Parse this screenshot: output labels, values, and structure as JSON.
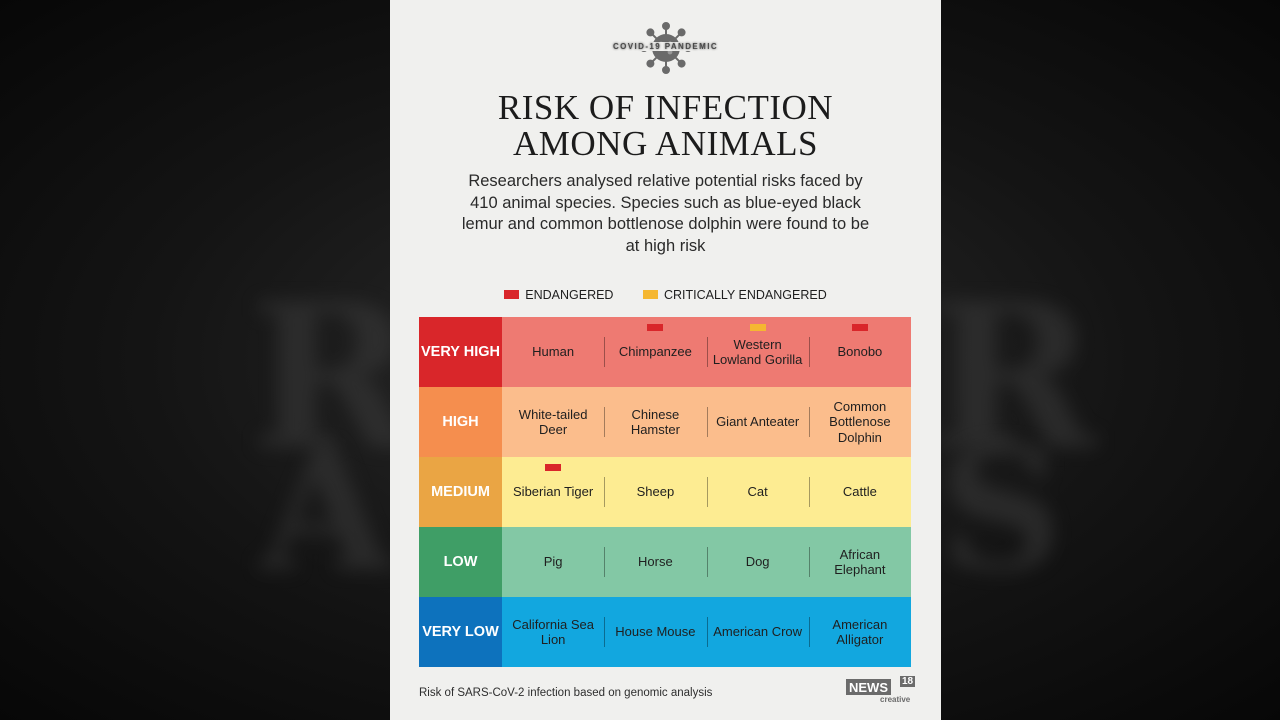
{
  "brand": {
    "tag": "COVID-19 PANDEMIC"
  },
  "title": {
    "line1": "RISK OF INFECTION",
    "line2": "AMONG ANIMALS"
  },
  "subtitle": "Researchers analysed relative potential risks faced by 410 animal species. Species such as blue-eyed black lemur and common bottlenose dolphin were found to be at high risk",
  "legend": [
    {
      "label": "ENDANGERED",
      "color": "#d9262a"
    },
    {
      "label": "CRITICALLY ENDANGERED",
      "color": "#f5b731"
    }
  ],
  "rows": [
    {
      "level": "VERY HIGH",
      "label_color": "#d9262a",
      "row_color": "#ee7a72",
      "cells": [
        {
          "name": "Human",
          "status": ""
        },
        {
          "name": "Chimpanzee",
          "status": "endangered"
        },
        {
          "name": "Western Lowland Gorilla",
          "status": "critically-endangered"
        },
        {
          "name": "Bonobo",
          "status": "endangered"
        }
      ]
    },
    {
      "level": "HIGH",
      "label_color": "#f58e4e",
      "row_color": "#fbbd8c",
      "cells": [
        {
          "name": "White-tailed Deer",
          "status": ""
        },
        {
          "name": "Chinese Hamster",
          "status": ""
        },
        {
          "name": "Giant Anteater",
          "status": ""
        },
        {
          "name": "Common Bottlenose Dolphin",
          "status": ""
        }
      ]
    },
    {
      "level": "MEDIUM",
      "label_color": "#eaa544",
      "row_color": "#fdec92",
      "cells": [
        {
          "name": "Siberian Tiger",
          "status": "endangered"
        },
        {
          "name": "Sheep",
          "status": ""
        },
        {
          "name": "Cat",
          "status": ""
        },
        {
          "name": "Cattle",
          "status": ""
        }
      ]
    },
    {
      "level": "LOW",
      "label_color": "#3f9e66",
      "row_color": "#83c8a5",
      "cells": [
        {
          "name": "Pig",
          "status": ""
        },
        {
          "name": "Horse",
          "status": ""
        },
        {
          "name": "Dog",
          "status": ""
        },
        {
          "name": "African Elephant",
          "status": ""
        }
      ]
    },
    {
      "level": "VERY LOW",
      "label_color": "#0d72bd",
      "row_color": "#12a7df",
      "cells": [
        {
          "name": "California Sea Lion",
          "status": ""
        },
        {
          "name": "House Mouse",
          "status": ""
        },
        {
          "name": "American Crow",
          "status": ""
        },
        {
          "name": "American Alligator",
          "status": ""
        }
      ]
    }
  ],
  "footer": "Risk of SARS-CoV-2 infection based on genomic analysis",
  "logo": {
    "name": "NEWS",
    "number": "18",
    "sub": "creative"
  }
}
